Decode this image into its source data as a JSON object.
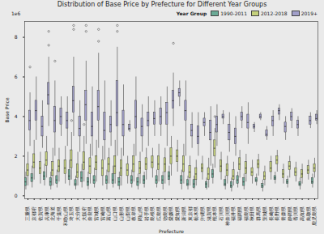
{
  "chart_data": {
    "type": "box",
    "title": "Distribution of Base Price by Prefecture for Different Year Groups",
    "x_label": "Prefecture",
    "y_label": "Base Price",
    "annotations": [
      "1e6"
    ],
    "legend_title": "Year Group",
    "legend": "top-right",
    "grid": false,
    "ylim": [
      -0.15,
      8.8
    ],
    "yticks": [
      0,
      2,
      4,
      6,
      8
    ],
    "categories": [
      "三重県",
      "京都府",
      "佐賀県",
      "兵庫県",
      "北海道",
      "千葉県",
      "和歌山県",
      "埼玉県",
      "大分県",
      "大阪府",
      "奈良県",
      "宮城県",
      "宮崎県",
      "富山県",
      "山口県",
      "山形県",
      "山梨県",
      "岐阜県",
      "岡山県",
      "岩手県",
      "島根県",
      "広島県",
      "徳島県",
      "愛媛県",
      "愛知県",
      "新潟県",
      "東京都",
      "栃木県",
      "沖縄県",
      "滋賀県",
      "熊本県",
      "石川県",
      "神奈川県",
      "福井県",
      "福岡県",
      "福島県",
      "秋田県",
      "群馬県",
      "茨城県",
      "長崎県",
      "長野県",
      "青森県",
      "静岡県",
      "香川県",
      "高知県",
      "鳥取県",
      "鹿児島県"
    ],
    "series": [
      {
        "name": "1990-2011",
        "color": "#6aaa96",
        "values": [
          [
            0.3,
            0.5,
            0.7,
            0.9,
            1.2
          ],
          [
            0.4,
            0.7,
            0.9,
            1.1,
            1.5
          ],
          null,
          [
            0.5,
            0.8,
            1.0,
            1.2,
            1.6
          ],
          [
            0.3,
            0.5,
            0.7,
            0.9,
            1.2
          ],
          [
            0.4,
            0.6,
            0.8,
            1.0,
            1.3
          ],
          null,
          [
            0.5,
            0.8,
            1.0,
            1.3,
            1.8
          ],
          [
            0.3,
            0.5,
            0.6,
            0.8,
            1.0
          ],
          [
            0.4,
            0.7,
            0.9,
            1.2,
            1.6
          ],
          [
            0.3,
            0.5,
            0.7,
            0.9,
            1.2
          ],
          [
            0.4,
            0.6,
            0.8,
            1.0,
            1.4
          ],
          null,
          [
            0.3,
            0.6,
            0.8,
            1.0,
            1.3
          ],
          [
            0.4,
            0.6,
            0.8,
            1.1,
            1.5
          ],
          [
            0.3,
            0.5,
            0.7,
            0.9,
            1.2
          ],
          null,
          [
            0.4,
            0.6,
            0.8,
            1.0,
            1.3
          ],
          [
            0.3,
            0.5,
            0.7,
            0.9,
            1.1
          ],
          [
            0.4,
            0.6,
            0.8,
            1.0,
            1.2
          ],
          null,
          [
            0.4,
            0.6,
            0.8,
            1.0,
            1.3
          ],
          [
            0.3,
            0.6,
            0.8,
            1.0,
            1.2
          ],
          [
            0.5,
            0.8,
            1.0,
            1.2,
            1.5
          ],
          null,
          [
            0.3,
            0.6,
            0.8,
            1.0,
            1.3
          ],
          [
            0.3,
            0.5,
            0.6,
            0.8,
            1.0
          ],
          [
            0.3,
            0.4,
            0.6,
            0.8,
            1.0
          ],
          null,
          [
            0.3,
            0.4,
            0.6,
            0.7,
            0.9
          ],
          [
            0.6,
            0.9,
            1.1,
            1.3,
            1.6
          ],
          null,
          [
            0.3,
            0.5,
            0.6,
            0.8,
            1.0
          ],
          [
            0.2,
            0.4,
            0.5,
            0.7,
            0.9
          ],
          [
            0.4,
            0.6,
            0.8,
            1.0,
            1.2
          ],
          [
            0.3,
            0.5,
            0.7,
            0.9,
            1.1
          ],
          null,
          [
            0.5,
            0.7,
            0.8,
            0.9,
            1.1
          ],
          [
            0.2,
            0.4,
            0.5,
            0.6,
            0.8
          ],
          null,
          [
            0.6,
            0.8,
            0.9,
            1.0,
            1.2
          ],
          null,
          [
            0.4,
            0.6,
            0.7,
            0.8,
            1.0
          ],
          null,
          [
            0.3,
            0.5,
            0.6,
            0.7,
            0.9
          ],
          null,
          [
            0.4,
            0.6,
            0.7,
            0.9,
            1.1
          ]
        ],
        "outliers": []
      },
      {
        "name": "2012-2018",
        "color": "#c5d17c",
        "values": [
          [
            0.5,
            1.0,
            1.3,
            1.6,
            2.2
          ],
          [
            0.8,
            1.4,
            1.7,
            2.1,
            2.8
          ],
          [
            0.6,
            1.1,
            1.4,
            1.7,
            2.2
          ],
          [
            0.9,
            1.5,
            1.8,
            2.2,
            3.0
          ],
          [
            0.5,
            1.0,
            1.3,
            1.7,
            2.4
          ],
          [
            0.7,
            1.2,
            1.5,
            1.8,
            2.4
          ],
          [
            0.6,
            1.1,
            1.4,
            1.8,
            2.5
          ],
          [
            0.8,
            1.4,
            1.8,
            2.3,
            3.2
          ],
          [
            0.5,
            0.9,
            1.2,
            1.6,
            2.2
          ],
          [
            0.7,
            1.3,
            1.7,
            2.2,
            3.0
          ],
          [
            0.6,
            1.1,
            1.5,
            1.9,
            2.6
          ],
          [
            0.7,
            1.3,
            1.7,
            2.0,
            2.8
          ],
          [
            0.5,
            1.0,
            1.4,
            1.8,
            2.5
          ],
          [
            0.6,
            1.2,
            1.6,
            1.9,
            2.4
          ],
          [
            0.6,
            1.1,
            1.5,
            2.0,
            2.8
          ],
          [
            0.5,
            1.0,
            1.4,
            1.8,
            2.4
          ],
          [
            0.6,
            1.0,
            1.3,
            1.6,
            2.0
          ],
          [
            0.7,
            1.2,
            1.6,
            2.0,
            2.6
          ],
          [
            0.6,
            1.1,
            1.4,
            1.7,
            2.2
          ],
          [
            0.8,
            1.3,
            1.6,
            1.9,
            2.4
          ],
          [
            0.9,
            1.4,
            1.7,
            2.0,
            2.4
          ],
          [
            0.7,
            1.3,
            1.6,
            2.0,
            2.6
          ],
          [
            0.6,
            1.2,
            1.6,
            1.9,
            2.4
          ],
          [
            1.0,
            1.6,
            2.0,
            2.4,
            3.0
          ],
          [
            1.2,
            1.7,
            2.0,
            2.3,
            2.8
          ],
          [
            0.6,
            1.2,
            1.6,
            2.0,
            2.6
          ],
          [
            0.5,
            0.9,
            1.2,
            1.5,
            2.0
          ],
          [
            0.5,
            0.8,
            1.1,
            1.4,
            1.8
          ],
          [
            0.8,
            1.2,
            1.4,
            1.6,
            2.0
          ],
          [
            0.4,
            0.8,
            1.1,
            1.4,
            1.9
          ],
          [
            1.4,
            2.0,
            2.4,
            2.8,
            3.4
          ],
          [
            0.8,
            1.2,
            1.5,
            1.8,
            2.2
          ],
          [
            0.6,
            1.0,
            1.3,
            1.6,
            2.0
          ],
          [
            0.5,
            0.8,
            1.0,
            1.3,
            1.7
          ],
          [
            0.9,
            1.3,
            1.6,
            1.9,
            2.3
          ],
          [
            0.7,
            1.1,
            1.4,
            1.7,
            2.1
          ],
          [
            0.6,
            1.0,
            1.2,
            1.4,
            1.8
          ],
          [
            1.0,
            1.4,
            1.6,
            1.8,
            2.1
          ],
          [
            0.5,
            0.8,
            1.0,
            1.2,
            1.5
          ],
          [
            0.8,
            1.2,
            1.4,
            1.7,
            2.0
          ],
          [
            1.2,
            1.6,
            1.8,
            2.0,
            2.3
          ],
          [
            0.6,
            0.9,
            1.1,
            1.3,
            1.6
          ],
          [
            0.9,
            1.3,
            1.5,
            1.7,
            2.0
          ],
          [
            0.7,
            1.0,
            1.2,
            1.4,
            1.7
          ],
          [
            0.6,
            0.9,
            1.1,
            1.3,
            1.6
          ],
          [
            0.8,
            1.1,
            1.3,
            1.5,
            1.8
          ],
          [
            0.9,
            1.2,
            1.4,
            1.6,
            1.9
          ]
        ],
        "outliers": [
          {
            "category": "埼玉県",
            "values": [
              3.8
            ]
          },
          {
            "category": "大阪府",
            "values": [
              3.6
            ]
          },
          {
            "category": "熊本県",
            "values": [
              4.0
            ]
          }
        ]
      },
      {
        "name": "2019+",
        "color": "#a19fc9",
        "values": [
          [
            2.5,
            3.3,
            3.8,
            4.3,
            5.2
          ],
          [
            2.8,
            3.8,
            4.3,
            4.8,
            6.0
          ],
          [
            2.4,
            3.0,
            3.5,
            4.0,
            4.8
          ],
          [
            3.5,
            4.6,
            5.1,
            5.7,
            7.0
          ],
          [
            2.0,
            3.2,
            3.8,
            4.5,
            5.8
          ],
          [
            3.0,
            3.6,
            4.0,
            4.4,
            5.0
          ],
          [
            2.5,
            3.4,
            3.8,
            4.2,
            5.0
          ],
          [
            3.0,
            4.2,
            4.8,
            5.5,
            7.0
          ],
          [
            2.2,
            3.0,
            3.4,
            4.0,
            4.8
          ],
          [
            2.6,
            3.8,
            4.6,
            5.3,
            6.8
          ],
          [
            2.0,
            3.0,
            3.5,
            4.2,
            5.5
          ],
          [
            2.4,
            3.8,
            4.5,
            5.3,
            7.2
          ],
          [
            1.8,
            2.8,
            3.3,
            4.2,
            5.8
          ],
          [
            2.5,
            3.2,
            3.6,
            4.0,
            4.8
          ],
          [
            2.0,
            3.5,
            4.2,
            5.8,
            7.5
          ],
          [
            2.0,
            3.0,
            3.6,
            4.3,
            5.6
          ],
          [
            3.2,
            3.3,
            3.4,
            3.6,
            3.8
          ],
          [
            2.0,
            3.4,
            4.0,
            4.8,
            6.0
          ],
          [
            2.2,
            3.0,
            3.5,
            3.9,
            4.6
          ],
          [
            2.5,
            3.5,
            3.8,
            4.2,
            5.0
          ],
          [
            3.0,
            3.6,
            3.9,
            4.2,
            4.8
          ],
          [
            3.0,
            3.6,
            4.0,
            4.4,
            5.0
          ],
          [
            2.5,
            3.6,
            4.2,
            4.7,
            5.5
          ],
          [
            3.5,
            4.4,
            4.8,
            5.3,
            6.2
          ],
          [
            4.5,
            5.0,
            5.2,
            5.4,
            5.8
          ],
          [
            2.0,
            3.8,
            4.3,
            4.8,
            5.8
          ],
          [
            2.4,
            3.0,
            3.3,
            3.6,
            4.2
          ],
          [
            2.0,
            2.6,
            3.0,
            3.5,
            4.2
          ],
          [
            3.0,
            3.5,
            3.7,
            3.9,
            4.2
          ],
          [
            1.5,
            2.8,
            3.2,
            3.8,
            4.5
          ],
          [
            2.5,
            3.2,
            3.6,
            4.0,
            4.6
          ],
          [
            3.6,
            3.9,
            4.0,
            4.1,
            4.3
          ],
          [
            2.2,
            2.8,
            3.2,
            3.6,
            4.2
          ],
          [
            2.0,
            2.6,
            3.0,
            3.4,
            4.0
          ],
          [
            3.4,
            3.8,
            4.0,
            4.2,
            4.5
          ],
          [
            2.6,
            3.4,
            3.7,
            4.1,
            4.7
          ],
          [
            3.2,
            3.4,
            3.5,
            3.6,
            3.7
          ],
          [
            3.8,
            3.9,
            4.0,
            4.1,
            4.2
          ],
          [
            2.8,
            3.0,
            3.1,
            3.3,
            3.5
          ],
          [
            3.0,
            3.5,
            3.8,
            4.0,
            4.3
          ],
          [
            3.8,
            4.1,
            4.3,
            4.4,
            4.6
          ],
          [
            2.8,
            3.2,
            3.5,
            3.7,
            4.0
          ],
          [
            3.4,
            3.8,
            4.0,
            4.2,
            4.4
          ],
          [
            3.0,
            3.4,
            3.6,
            3.8,
            4.0
          ],
          null,
          [
            3.4,
            3.6,
            3.8,
            4.0,
            4.2
          ],
          [
            3.6,
            3.8,
            3.9,
            4.1,
            4.3
          ]
        ],
        "outliers": [
          {
            "category": "三重県",
            "values": [
              6.5
            ]
          },
          {
            "category": "兵庫県",
            "values": [
              8.3,
              7.6
            ]
          },
          {
            "category": "北海道",
            "values": [
              6.8
            ]
          },
          {
            "category": "埼玉県",
            "values": [
              8.4,
              8.6
            ]
          },
          {
            "category": "大阪府",
            "values": [
              8.3,
              8.6
            ]
          },
          {
            "category": "宮城県",
            "values": [
              8.4,
              7.8
            ]
          },
          {
            "category": "山口県",
            "values": [
              8.6,
              8.3
            ]
          },
          {
            "category": "愛媛県",
            "values": [
              7.7
            ]
          }
        ]
      }
    ]
  }
}
